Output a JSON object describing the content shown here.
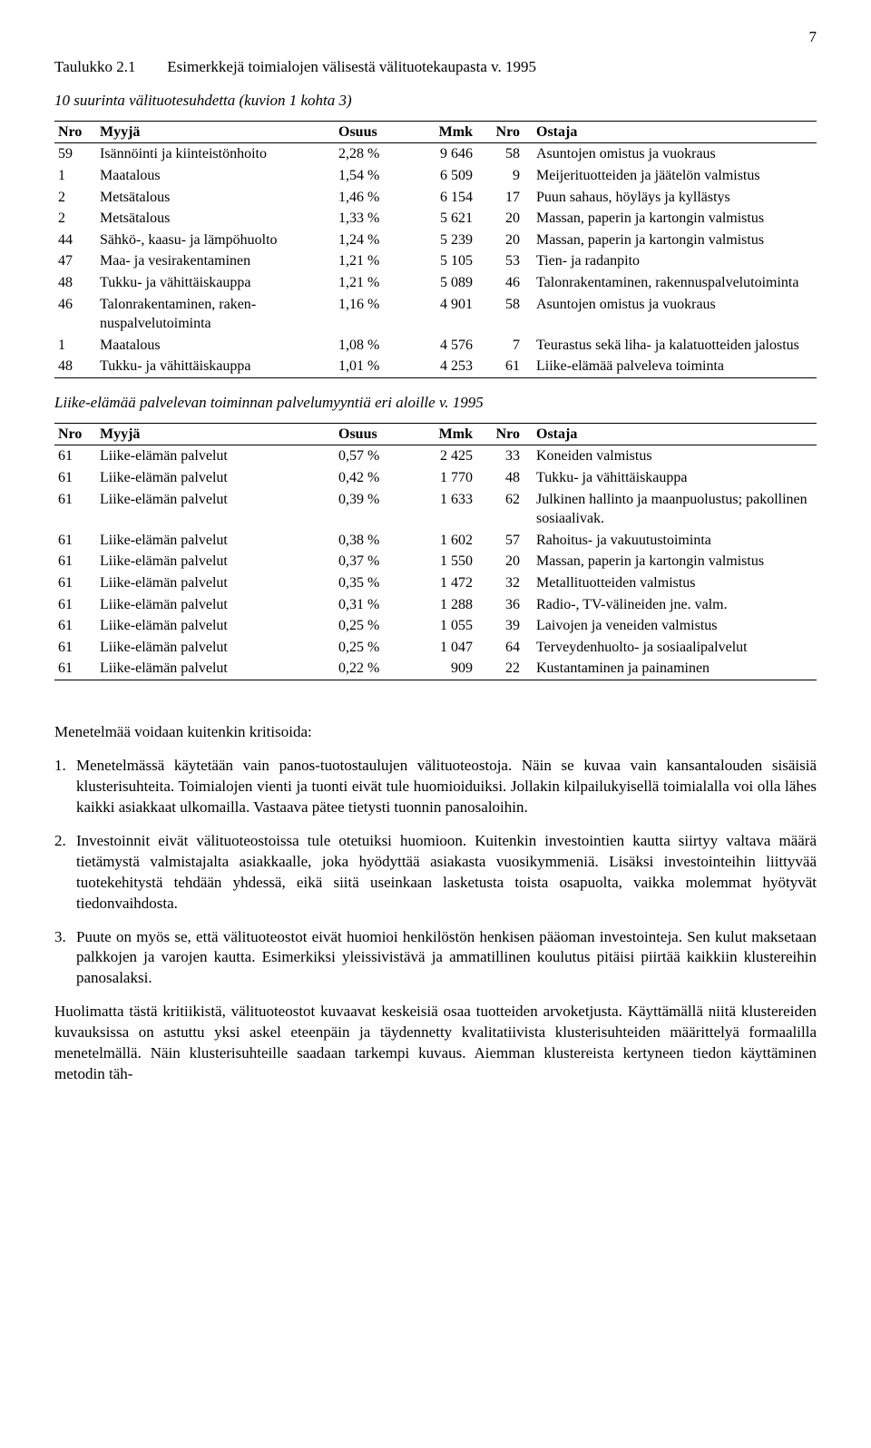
{
  "page_number": "7",
  "caption_label": "Taulukko 2.1",
  "caption_text": "Esimerkkejä toimialojen välisestä välituotekaupasta v. 1995",
  "subheading1": "10 suurinta välituotesuhdetta (kuvion 1 kohta 3)",
  "headers": {
    "nro": "Nro",
    "myyja": "Myyjä",
    "osuus": "Osuus",
    "mmk": "Mmk",
    "nro2": "Nro",
    "ostaja": "Ostaja"
  },
  "table1": [
    {
      "nro": "59",
      "myyja": "Isännöinti ja kiinteistön­hoito",
      "osuus": "2,28 %",
      "mmk": "9 646",
      "nro2": "58",
      "ostaja": "Asuntojen omistus ja vuokraus"
    },
    {
      "nro": "1",
      "myyja": "Maatalous",
      "osuus": "1,54 %",
      "mmk": "6 509",
      "nro2": "9",
      "ostaja": "Meijerituotteiden ja jäätelön valmistus"
    },
    {
      "nro": "2",
      "myyja": "Metsätalous",
      "osuus": "1,46 %",
      "mmk": "6 154",
      "nro2": "17",
      "ostaja": "Puun sahaus, höyläys ja kyllästys"
    },
    {
      "nro": "2",
      "myyja": "Metsätalous",
      "osuus": "1,33 %",
      "mmk": "5 621",
      "nro2": "20",
      "ostaja": "Massan, paperin ja kartongin valmistus"
    },
    {
      "nro": "44",
      "myyja": "Sähkö-, kaasu- ja lämpö­huolto",
      "osuus": "1,24 %",
      "mmk": "5 239",
      "nro2": "20",
      "ostaja": "Massan, paperin ja kartongin valmistus"
    },
    {
      "nro": "47",
      "myyja": "Maa- ja vesirakentaminen",
      "osuus": "1,21 %",
      "mmk": "5 105",
      "nro2": "53",
      "ostaja": "Tien- ja radanpito"
    },
    {
      "nro": "48",
      "myyja": "Tukku- ja vähittäiskauppa",
      "osuus": "1,21 %",
      "mmk": "5 089",
      "nro2": "46",
      "ostaja": "Talonrakentaminen, rakennuspalvelutoi­minta"
    },
    {
      "nro": "46",
      "myyja": "Talonrakentaminen, raken­nuspalvelutoiminta",
      "osuus": "1,16 %",
      "mmk": "4 901",
      "nro2": "58",
      "ostaja": "Asuntojen omistus ja vuokraus"
    },
    {
      "nro": "1",
      "myyja": "Maatalous",
      "osuus": "1,08 %",
      "mmk": "4 576",
      "nro2": "7",
      "ostaja": "Teurastus sekä liha- ja kalatuotteiden jalostus"
    },
    {
      "nro": "48",
      "myyja": "Tukku- ja vähittäiskauppa",
      "osuus": "1,01 %",
      "mmk": "4 253",
      "nro2": "61",
      "ostaja": "Liike-elämää palveleva toiminta"
    }
  ],
  "subheading2": "Liike-elämää palvelevan toiminnan palvelumyyntiä eri aloille v. 1995",
  "table2": [
    {
      "nro": "61",
      "myyja": "Liike-elämän palvelut",
      "osuus": "0,57 %",
      "mmk": "2 425",
      "nro2": "33",
      "ostaja": "Koneiden valmistus"
    },
    {
      "nro": "61",
      "myyja": "Liike-elämän palvelut",
      "osuus": "0,42 %",
      "mmk": "1 770",
      "nro2": "48",
      "ostaja": "Tukku- ja vähittäiskauppa"
    },
    {
      "nro": "61",
      "myyja": "Liike-elämän palvelut",
      "osuus": "0,39 %",
      "mmk": "1 633",
      "nro2": "62",
      "ostaja": "Julkinen hallinto ja maanpuolustus; pakolli­nen sosiaalivak."
    },
    {
      "nro": "61",
      "myyja": "Liike-elämän palvelut",
      "osuus": "0,38 %",
      "mmk": "1 602",
      "nro2": "57",
      "ostaja": "Rahoitus- ja vakuutustoiminta"
    },
    {
      "nro": "61",
      "myyja": "Liike-elämän palvelut",
      "osuus": "0,37 %",
      "mmk": "1 550",
      "nro2": "20",
      "ostaja": "Massan, paperin ja kartongin valmistus"
    },
    {
      "nro": "61",
      "myyja": "Liike-elämän palvelut",
      "osuus": "0,35 %",
      "mmk": "1 472",
      "nro2": "32",
      "ostaja": "Metallituotteiden valmistus"
    },
    {
      "nro": "61",
      "myyja": "Liike-elämän palvelut",
      "osuus": "0,31 %",
      "mmk": "1 288",
      "nro2": "36",
      "ostaja": "Radio-, TV-välineiden jne. valm."
    },
    {
      "nro": "61",
      "myyja": "Liike-elämän palvelut",
      "osuus": "0,25 %",
      "mmk": "1 055",
      "nro2": "39",
      "ostaja": "Laivojen ja veneiden valmistus"
    },
    {
      "nro": "61",
      "myyja": "Liike-elämän palvelut",
      "osuus": "0,25 %",
      "mmk": "1 047",
      "nro2": "64",
      "ostaja": "Terveydenhuolto- ja sosiaalipalvelut"
    },
    {
      "nro": "61",
      "myyja": "Liike-elämän palvelut",
      "osuus": "0,22 %",
      "mmk": "909",
      "nro2": "22",
      "ostaja": "Kustantaminen ja painaminen"
    }
  ],
  "critique_intro": "Menetelmää voidaan kuitenkin kritisoida:",
  "critique": [
    "Menetelmässä käytetään vain panos-tuotostaulujen välituoteostoja. Näin se kuvaa vain kansantalouden sisäisiä klusterisuhteita. Toimialojen vienti ja tuonti eivät tule huomioi­duiksi. Jollakin kilpailukyisellä toimialalla voi olla lähes kaikki asiakkaat ulkomailla. Vastaava pätee tietysti tuonnin panosaloihin.",
    "Investoinnit eivät välituoteostoissa tule otetuiksi huomioon. Kuitenkin investointien kautta siirtyy valtava määrä tietämystä valmistajalta asiakkaalle, joka hyödyttää asiakasta vuosi­kymmeniä. Lisäksi investointeihin liittyvää tuotekehitystä tehdään yhdessä, eikä siitä useinkaan lasketusta toista osapuolta, vaikka molemmat hyötyvät tiedonvaihdosta.",
    "Puute on myös se, että välituoteostot eivät huomioi henkilöstön henkisen pääoman inves­tointeja. Sen kulut maksetaan palkkojen ja varojen kautta. Esimerkiksi yleissivistävä ja ammatillinen koulutus pitäisi piirtää kaikkiin klustereihin panosalaksi."
  ],
  "closing_para": "Huolimatta tästä kritiikistä, välituoteostot kuvaavat keskeisiä osaa tuotteiden arvoketjusta. Käyttämällä niitä klustereiden kuvauksissa on astuttu yksi askel eteenpäin ja täydennetty kvalitatiivista klusterisuhteiden määrittelyä formaalilla menetelmällä. Näin klusterisuhteille saadaan tarkempi kuvaus. Aiemman klustereista kertyneen tiedon käyttäminen metodin täh-"
}
